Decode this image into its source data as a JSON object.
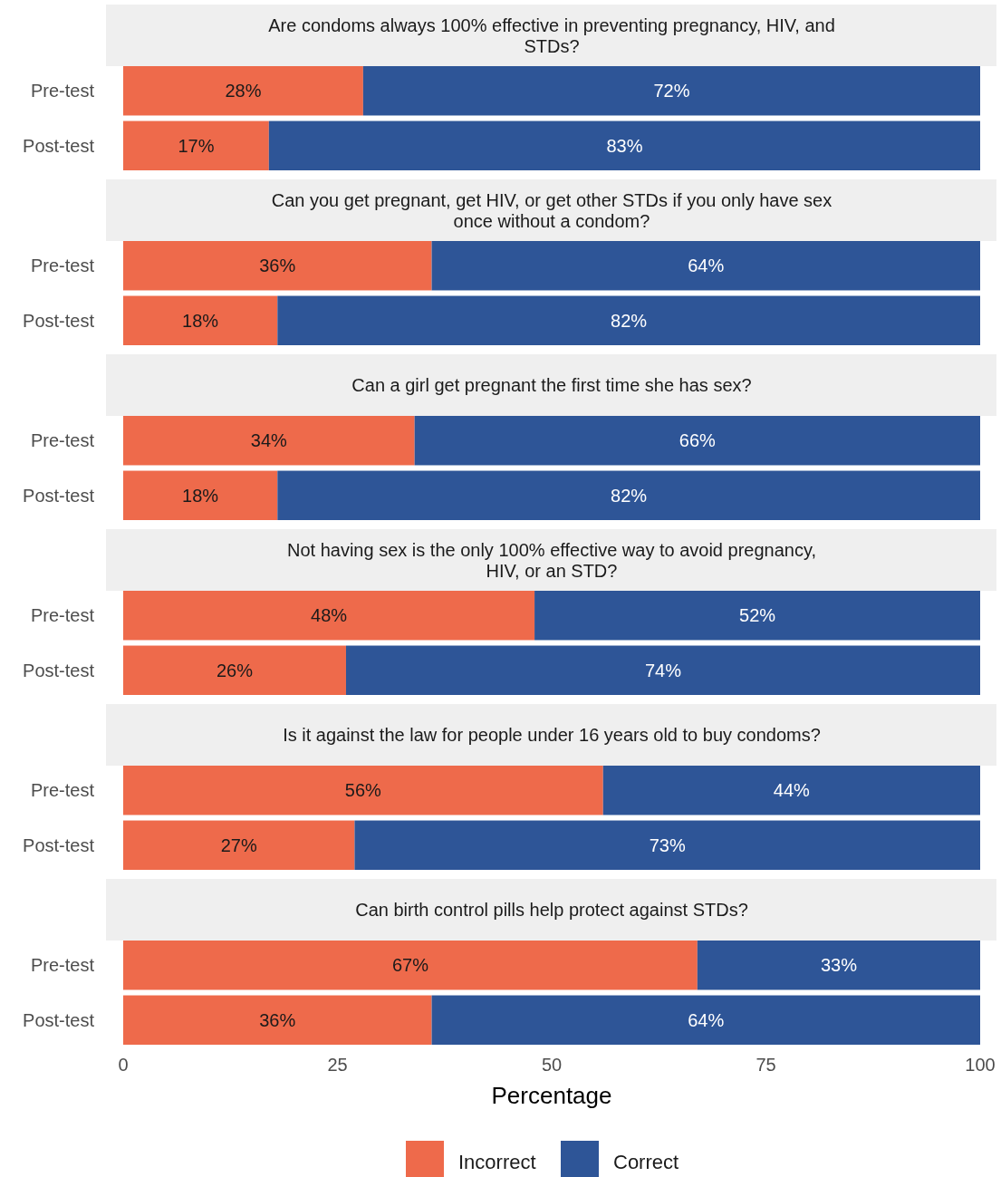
{
  "chart_data": [
    {
      "type": "bar",
      "orientation": "horizontal",
      "stacked": true,
      "title": "Are condoms always 100% effective in preventing pregnancy, HIV, and STDs?",
      "categories": [
        "Pre-test",
        "Post-test"
      ],
      "series": [
        {
          "color": "#ee6a4b",
          "values": [
            28,
            17
          ],
          "value_labels": [
            "28%",
            "17%"
          ]
        },
        {
          "color": "#2e5597",
          "values": [
            72,
            83
          ],
          "value_labels": [
            "72%",
            "83%"
          ]
        }
      ],
      "xlim": [
        0,
        100
      ],
      "tick_labels": "y"
    },
    {
      "type": "bar",
      "orientation": "horizontal",
      "stacked": true,
      "title": "Can you get pregnant, get HIV, or get other STDs if you only have sex once without a condom?",
      "categories": [
        "Pre-test",
        "Post-test"
      ],
      "series": [
        {
          "color": "#ee6a4b",
          "values": [
            36,
            18
          ],
          "value_labels": [
            "36%",
            "18%"
          ]
        },
        {
          "color": "#2e5597",
          "values": [
            64,
            82
          ],
          "value_labels": [
            "64%",
            "82%"
          ]
        }
      ],
      "xlim": [
        0,
        100
      ],
      "tick_labels": "y"
    },
    {
      "type": "bar",
      "orientation": "horizontal",
      "stacked": true,
      "title": "Can a girl get pregnant the first time she has sex?",
      "categories": [
        "Pre-test",
        "Post-test"
      ],
      "series": [
        {
          "color": "#ee6a4b",
          "values": [
            34,
            18
          ],
          "value_labels": [
            "34%",
            "18%"
          ]
        },
        {
          "color": "#2e5597",
          "values": [
            66,
            82
          ],
          "value_labels": [
            "66%",
            "82%"
          ]
        }
      ],
      "xlim": [
        0,
        100
      ],
      "tick_labels": "y"
    },
    {
      "type": "bar",
      "orientation": "horizontal",
      "stacked": true,
      "title": "Not having sex is the only 100% effective way to avoid pregnancy, HIV, or an STD?",
      "categories": [
        "Pre-test",
        "Post-test"
      ],
      "series": [
        {
          "color": "#ee6a4b",
          "values": [
            48,
            26
          ],
          "value_labels": [
            "48%",
            "26%"
          ]
        },
        {
          "color": "#2e5597",
          "values": [
            52,
            74
          ],
          "value_labels": [
            "52%",
            "74%"
          ]
        }
      ],
      "xlim": [
        0,
        100
      ],
      "tick_labels": "y"
    },
    {
      "type": "bar",
      "orientation": "horizontal",
      "stacked": true,
      "title": "Is it against the law for people under 16 years old to buy condoms?",
      "categories": [
        "Pre-test",
        "Post-test"
      ],
      "series": [
        {
          "color": "#ee6a4b",
          "values": [
            56,
            27
          ],
          "value_labels": [
            "56%",
            "27%"
          ]
        },
        {
          "color": "#2e5597",
          "values": [
            44,
            73
          ],
          "value_labels": [
            "44%",
            "73%"
          ]
        }
      ],
      "xlim": [
        0,
        100
      ],
      "tick_labels": "y"
    },
    {
      "type": "bar",
      "orientation": "horizontal",
      "stacked": true,
      "title": "Can birth control pills help protect against STDs?",
      "categories": [
        "Pre-test",
        "Post-test"
      ],
      "series": [
        {
          "name": "Incorrect",
          "color": "#ee6a4b",
          "values": [
            67,
            36
          ],
          "value_labels": [
            "67%",
            "36%"
          ]
        },
        {
          "name": "Correct",
          "color": "#2e5597",
          "values": [
            33,
            64
          ],
          "value_labels": [
            "33%",
            "64%"
          ]
        }
      ],
      "xlim": [
        0,
        100
      ],
      "xticks": [
        0,
        25,
        50,
        75,
        100
      ],
      "xlabel": "Percentage",
      "legend": "bottom"
    }
  ]
}
